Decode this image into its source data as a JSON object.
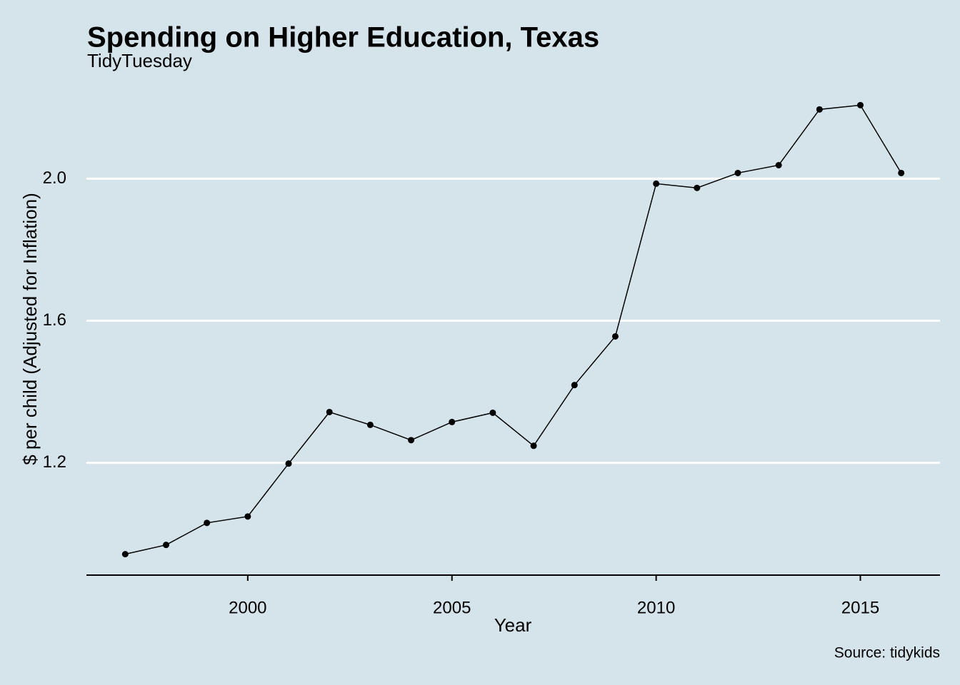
{
  "chart_data": {
    "type": "line",
    "title": "Spending on Higher Education, Texas",
    "subtitle": "TidyTuesday",
    "x_label": "Year",
    "y_label": "$ per child (Adjusted for Inflation)",
    "caption": "Source: tidykids",
    "x": [
      1997,
      1998,
      1999,
      2000,
      2001,
      2002,
      2003,
      2004,
      2005,
      2006,
      2007,
      2008,
      2009,
      2010,
      2011,
      2012,
      2013,
      2014,
      2015,
      2016
    ],
    "series": [
      {
        "name": "Texas",
        "color": "#000000",
        "values": [
          0.943,
          0.969,
          1.031,
          1.049,
          1.198,
          1.343,
          1.307,
          1.264,
          1.315,
          1.341,
          1.248,
          1.419,
          1.556,
          1.986,
          1.974,
          2.016,
          2.038,
          2.195,
          2.207,
          2.016
        ]
      }
    ],
    "xlim": [
      1996.05,
      2016.95
    ],
    "xticks": [
      2000,
      2005,
      2010,
      2015
    ],
    "ylim": [
      0.884,
      2.27
    ],
    "yticks": [
      1.2,
      1.6,
      {
        "value": 2,
        "label": "2.0"
      }
    ],
    "grid": true,
    "grid_color": "#ffffff",
    "background": "#d5e4eb"
  }
}
